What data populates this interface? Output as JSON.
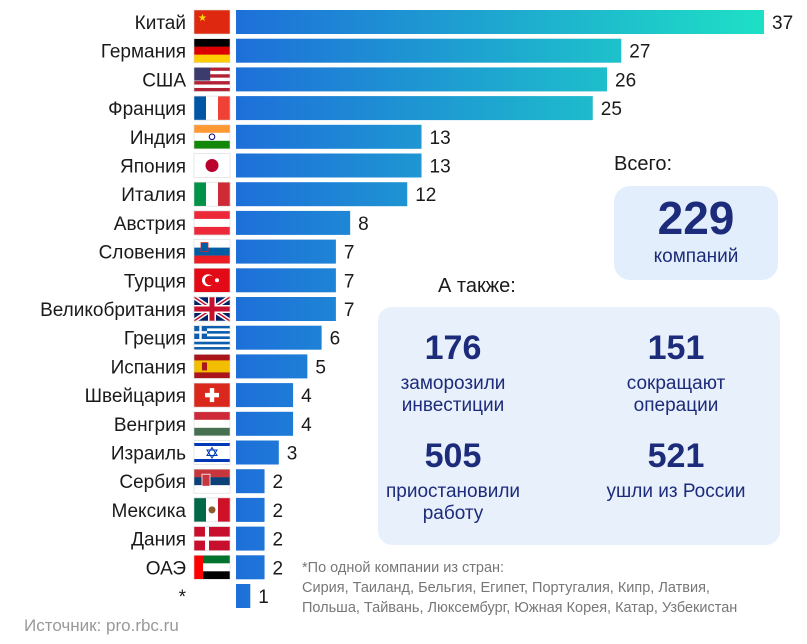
{
  "chart_data": {
    "type": "bar",
    "orientation": "horizontal",
    "categories": [
      "Китай",
      "Германия",
      "США",
      "Франция",
      "Индия",
      "Япония",
      "Италия",
      "Австрия",
      "Словения",
      "Турция",
      "Великобритания",
      "Греция",
      "Испания",
      "Швейцария",
      "Венгрия",
      "Израиль",
      "Сербия",
      "Мексика",
      "Дания",
      "ОАЭ",
      "*"
    ],
    "values": [
      37,
      27,
      26,
      25,
      13,
      13,
      12,
      8,
      7,
      7,
      7,
      6,
      5,
      4,
      4,
      3,
      2,
      2,
      2,
      2,
      1
    ],
    "flags": [
      "cn",
      "de",
      "us",
      "fr",
      "in",
      "jp",
      "it",
      "at",
      "si",
      "tr",
      "gb",
      "gr",
      "es",
      "ch",
      "hu",
      "il",
      "rs",
      "mx",
      "dk",
      "ae",
      ""
    ],
    "bar_gradient": [
      "#1e6fd9",
      "#1ee0c6"
    ],
    "grid": false,
    "legend": "none"
  },
  "summary": {
    "total_label": "Всего:",
    "total_value": "229",
    "total_caption": "компаний",
    "also_label": "А также:",
    "stats": [
      {
        "value": "176",
        "caption": "заморозили\nинвестиции"
      },
      {
        "value": "151",
        "caption": "сокращают\nоперации"
      },
      {
        "value": "505",
        "caption": "приостановили\nработу"
      },
      {
        "value": "521",
        "caption": "ушли из России"
      }
    ]
  },
  "footnote": [
    "*По одной компании из стран:",
    "Сирия, Таиланд, Бельгия, Египет, Португалия, Кипр, Латвия,",
    "Польша, Тайвань, Люксембург, Южная Корея, Катар, Узбекистан"
  ],
  "source": "Источник: pro.rbc.ru"
}
